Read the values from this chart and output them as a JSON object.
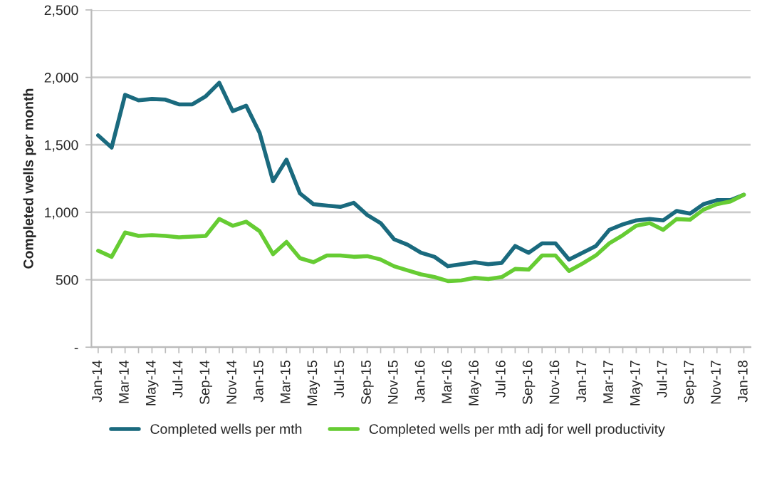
{
  "chart_data": {
    "type": "line",
    "ylabel": "Completed wells per month",
    "categories": [
      "Jan-14",
      null,
      "Mar-14",
      null,
      "May-14",
      null,
      "Jul-14",
      null,
      "Sep-14",
      null,
      "Nov-14",
      null,
      "Jan-15",
      null,
      "Mar-15",
      null,
      "May-15",
      null,
      "Jul-15",
      null,
      "Sep-15",
      null,
      "Nov-15",
      null,
      "Jan-16",
      null,
      "Mar-16",
      null,
      "May-16",
      null,
      "Jul-16",
      null,
      "Sep-16",
      null,
      "Nov-16",
      null,
      "Jan-17",
      null,
      "Mar-17",
      null,
      "May-17",
      null,
      "Jul-17",
      null,
      "Sep-17",
      null,
      "Nov-17",
      null,
      "Jan-18"
    ],
    "series": [
      {
        "name": "Completed wells per mth",
        "color": "#1a6a7e",
        "values": [
          1570,
          1480,
          1870,
          1830,
          1840,
          1835,
          1800,
          1800,
          1860,
          1960,
          1750,
          1790,
          1590,
          1230,
          1390,
          1140,
          1060,
          1050,
          1040,
          1070,
          980,
          920,
          800,
          760,
          700,
          670,
          600,
          615,
          630,
          615,
          625,
          750,
          700,
          770,
          770,
          650,
          700,
          750,
          870,
          910,
          940,
          950,
          940,
          1010,
          990,
          1060,
          1090,
          1090,
          1130
        ]
      },
      {
        "name": "Completed wells per mth adj for well productivity",
        "color": "#66cc33",
        "values": [
          715,
          670,
          850,
          825,
          830,
          825,
          815,
          820,
          825,
          950,
          900,
          930,
          860,
          690,
          780,
          660,
          630,
          680,
          680,
          670,
          675,
          650,
          600,
          570,
          540,
          520,
          490,
          495,
          515,
          505,
          520,
          580,
          575,
          680,
          680,
          565,
          620,
          680,
          770,
          830,
          900,
          920,
          870,
          950,
          945,
          1020,
          1060,
          1080,
          1130
        ]
      }
    ],
    "ylim": [
      0,
      2500
    ],
    "yticks": [
      {
        "value": 0,
        "label": "-"
      },
      {
        "value": 500,
        "label": "500"
      },
      {
        "value": 1000,
        "label": "1,000"
      },
      {
        "value": 1500,
        "label": "1,500"
      },
      {
        "value": 2000,
        "label": "2,000"
      },
      {
        "value": 2500,
        "label": "2,500"
      }
    ],
    "grid": "y",
    "legend": "bottom",
    "marker": "none",
    "line_style": "solid"
  }
}
